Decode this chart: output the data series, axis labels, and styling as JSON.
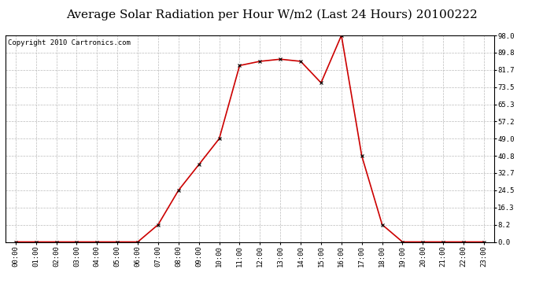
{
  "title": "Average Solar Radiation per Hour W/m2 (Last 24 Hours) 20100222",
  "copyright_text": "Copyright 2010 Cartronics.com",
  "hours": [
    "00:00",
    "01:00",
    "02:00",
    "03:00",
    "04:00",
    "05:00",
    "06:00",
    "07:00",
    "08:00",
    "09:00",
    "10:00",
    "11:00",
    "12:00",
    "13:00",
    "14:00",
    "15:00",
    "16:00",
    "17:00",
    "18:00",
    "19:00",
    "20:00",
    "21:00",
    "22:00",
    "23:00"
  ],
  "values": [
    0.0,
    0.0,
    0.0,
    0.0,
    0.0,
    0.0,
    0.0,
    8.2,
    24.5,
    36.7,
    49.0,
    83.7,
    85.7,
    86.7,
    85.7,
    75.5,
    98.0,
    40.8,
    8.2,
    0.0,
    0.0,
    0.0,
    0.0,
    0.0
  ],
  "y_ticks": [
    0.0,
    8.2,
    16.3,
    24.5,
    32.7,
    40.8,
    49.0,
    57.2,
    65.3,
    73.5,
    81.7,
    89.8,
    98.0
  ],
  "ylim": [
    0,
    98.0
  ],
  "line_color": "#cc0000",
  "marker_color": "#000000",
  "bg_color": "#ffffff",
  "plot_bg_color": "#ffffff",
  "grid_color": "#bbbbbb",
  "title_fontsize": 11,
  "copyright_fontsize": 6.5
}
